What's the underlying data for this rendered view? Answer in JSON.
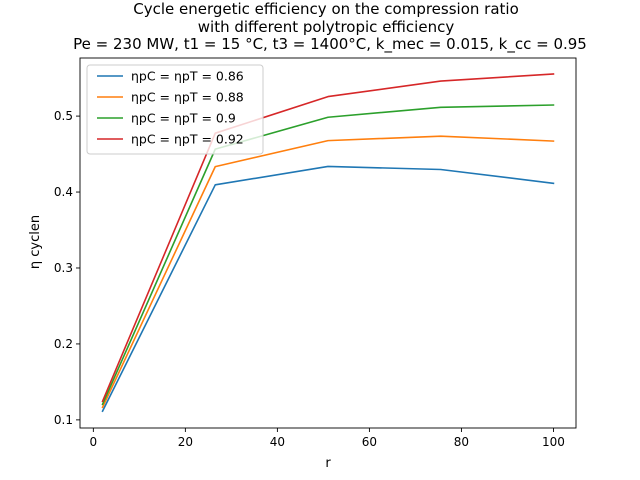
{
  "chart_data": {
    "type": "line",
    "title": [
      "Cycle energetic efficiency on the compression ratio",
      "with different polytropic efficiency",
      "Pe = 230 MW, t1 = 15 °C, t3 = 1400°C, k_mec = 0.015, k_cc = 0.95"
    ],
    "xlabel": "r",
    "ylabel": "η cyclen",
    "xlim": [
      -2.9,
      104.9
    ],
    "ylim": [
      0.0893,
      0.5765
    ],
    "xticks": [
      0,
      20,
      40,
      60,
      80,
      100
    ],
    "yticks": [
      0.1,
      0.2,
      0.3,
      0.4,
      0.5
    ],
    "x": [
      2,
      26.5,
      51,
      75.5,
      100
    ],
    "grid": false,
    "legend_position": "upper-left",
    "series": [
      {
        "name": "ηpC = ηpT = 0.86",
        "color": "#1f77b4",
        "values": [
          0.1115,
          0.4095,
          0.4337,
          0.4297,
          0.4115
        ]
      },
      {
        "name": "ηpC = ηpT = 0.88",
        "color": "#ff7f0e",
        "values": [
          0.1165,
          0.4335,
          0.4677,
          0.4736,
          0.4671
        ]
      },
      {
        "name": "ηpC = ηpT = 0.9",
        "color": "#2ca02c",
        "values": [
          0.1205,
          0.4565,
          0.4985,
          0.5116,
          0.5146
        ]
      },
      {
        "name": "ηpC = ηpT = 0.92",
        "color": "#d62728",
        "values": [
          0.1245,
          0.4775,
          0.5257,
          0.5461,
          0.5555
        ]
      }
    ]
  }
}
